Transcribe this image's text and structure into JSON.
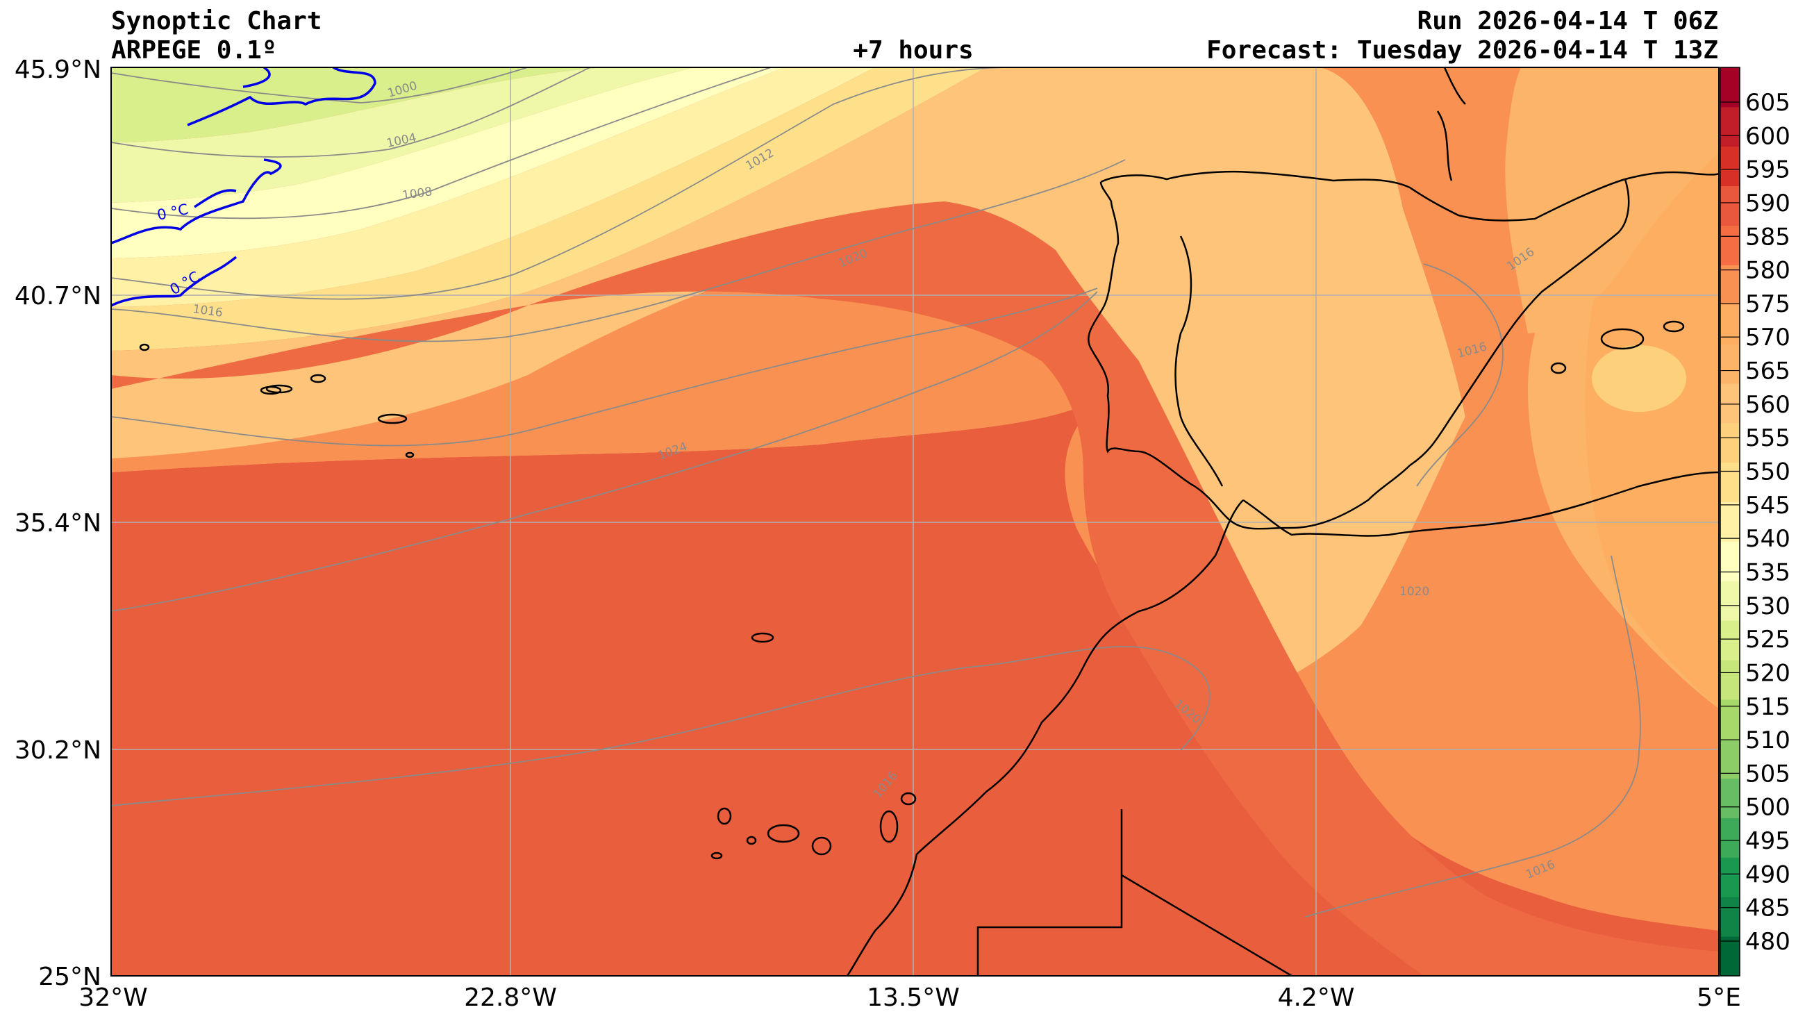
{
  "header": {
    "title": "Synoptic Chart",
    "model": "ARPEGE 0.1º",
    "lead": "+7 hours",
    "run": "Run 2026-04-14 T 06Z",
    "forecast": "Forecast: Tuesday 2026-04-14 T 13Z"
  },
  "axes": {
    "lat_labels": [
      "45.9°N",
      "40.7°N",
      "35.4°N",
      "30.2°N",
      "25°N"
    ],
    "lon_labels": [
      "32°W",
      "22.8°W",
      "13.5°W",
      "4.2°W",
      "5°E"
    ]
  },
  "colorbar": {
    "levels": [
      "480",
      "485",
      "490",
      "495",
      "500",
      "505",
      "510",
      "515",
      "520",
      "525",
      "530",
      "535",
      "540",
      "545",
      "550",
      "555",
      "560",
      "565",
      "570",
      "575",
      "580",
      "585",
      "590",
      "595",
      "600",
      "605"
    ],
    "colors": [
      "#006837",
      "#0f8446",
      "#1a9850",
      "#3daa5a",
      "#66bd63",
      "#8ccd68",
      "#a6d96a",
      "#c6e67c",
      "#d9ef8b",
      "#eef8a8",
      "#ffffbf",
      "#fff1a6",
      "#fee08b",
      "#fdd07c",
      "#fdc47a",
      "#fcb469",
      "#fdae61",
      "#f99153",
      "#f46d43",
      "#e9573c",
      "#d73027",
      "#c21e2a",
      "#a50026"
    ]
  },
  "map": {
    "band_colors": [
      "#d9ef8b",
      "#eef8a8",
      "#ffffbf",
      "#fff1a6",
      "#fee08b",
      "#fdd07c",
      "#fcb469",
      "#f99153",
      "#f47c4c",
      "#ee6a42",
      "#e95e3c"
    ],
    "isobar_labels": [
      "1000",
      "1004",
      "1008",
      "1012",
      "1016",
      "1020",
      "1024",
      "1016",
      "1016",
      "1016",
      "1020",
      "1020",
      "1016"
    ],
    "freezing_labels": [
      "0 °C",
      "0 °C"
    ]
  }
}
